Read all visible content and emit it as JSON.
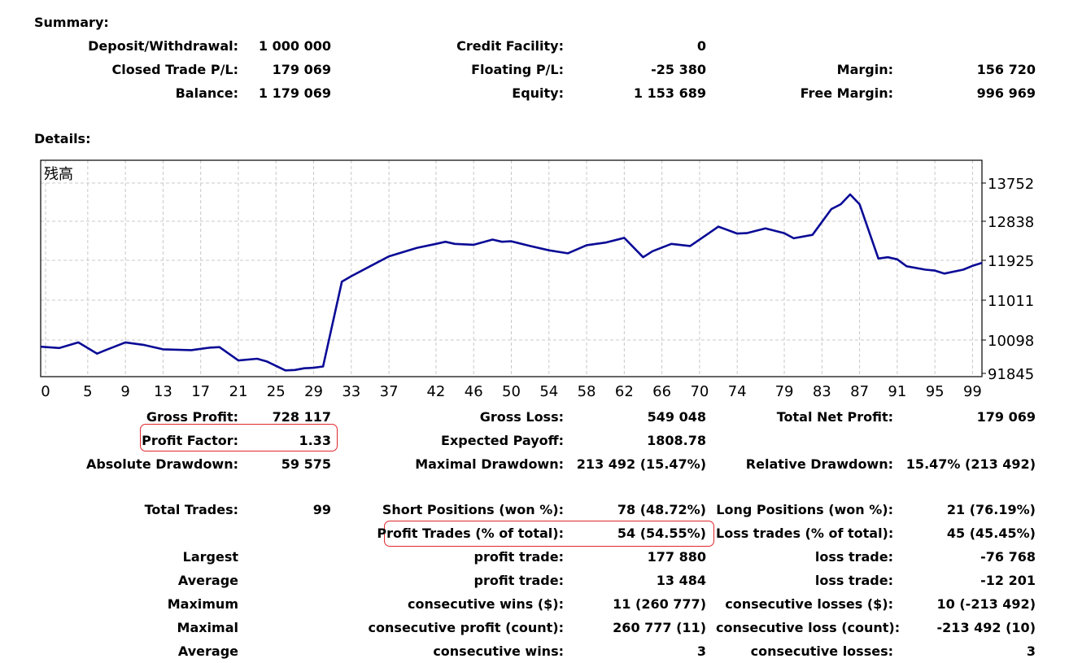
{
  "summary": {
    "heading": "Summary:",
    "deposit_label": "Deposit/Withdrawal:",
    "deposit_value": "1 000 000",
    "credit_label": "Credit Facility:",
    "credit_value": "0",
    "closed_pl_label": "Closed Trade P/L:",
    "closed_pl_value": "179 069",
    "floating_pl_label": "Floating P/L:",
    "floating_pl_value": "-25 380",
    "margin_label": "Margin:",
    "margin_value": "156 720",
    "balance_label": "Balance:",
    "balance_value": "1 179 069",
    "equity_label": "Equity:",
    "equity_value": "1 153 689",
    "free_margin_label": "Free Margin:",
    "free_margin_value": "996 969"
  },
  "details": {
    "heading": "Details:",
    "gross_profit_label": "Gross Profit:",
    "gross_profit_value": "728 117",
    "gross_loss_label": "Gross Loss:",
    "gross_loss_value": "549 048",
    "total_net_profit_label": "Total Net Profit:",
    "total_net_profit_value": "179 069",
    "profit_factor_label": "Profit Factor:",
    "profit_factor_value": "1.33",
    "expected_payoff_label": "Expected Payoff:",
    "expected_payoff_value": "1808.78",
    "absolute_drawdown_label": "Absolute Drawdown:",
    "absolute_drawdown_value": "59 575",
    "maximal_drawdown_label": "Maximal Drawdown:",
    "maximal_drawdown_value": "213 492 (15.47%)",
    "relative_drawdown_label": "Relative Drawdown:",
    "relative_drawdown_value": "15.47% (213 492)",
    "total_trades_label": "Total Trades:",
    "total_trades_value": "99",
    "short_positions_label": "Short Positions (won %):",
    "short_positions_value": "78 (48.72%)",
    "long_positions_label": "Long Positions (won %):",
    "long_positions_value": "21 (76.19%)",
    "profit_trades_label": "Profit Trades (% of total):",
    "profit_trades_value": "54 (54.55%)",
    "loss_trades_label": "Loss trades (% of total):",
    "loss_trades_value": "45 (45.45%)",
    "largest_label": "Largest",
    "largest_profit_label": "profit trade:",
    "largest_profit_value": "177 880",
    "largest_loss_label": "loss trade:",
    "largest_loss_value": "-76 768",
    "average_label": "Average",
    "average_profit_label": "profit trade:",
    "average_profit_value": "13 484",
    "average_loss_label": "loss trade:",
    "average_loss_value": "-12 201",
    "maximum_label": "Maximum",
    "max_consec_wins_label": "consecutive wins ($):",
    "max_consec_wins_value": "11 (260 777)",
    "max_consec_losses_label": "consecutive losses ($):",
    "max_consec_losses_value": "10 (-213 492)",
    "maximal_label": "Maximal",
    "maximal_consec_profit_label": "consecutive profit (count):",
    "maximal_consec_profit_value": "260 777 (11)",
    "maximal_consec_loss_label": "consecutive loss (count):",
    "maximal_consec_loss_value": "-213 492 (10)",
    "average2_label": "Average",
    "avg_consec_wins_label": "consecutive wins:",
    "avg_consec_wins_value": "3",
    "avg_consec_losses_label": "consecutive losses:",
    "avg_consec_losses_value": "3"
  },
  "colors": {
    "line": "#0a0a96",
    "grid": "#c8c8c8",
    "highlight": "#e0262b"
  },
  "chart_data": {
    "type": "line",
    "series_label": "残高",
    "x_ticks": [
      "0",
      "5",
      "9",
      "13",
      "17",
      "21",
      "25",
      "29",
      "33",
      "37",
      "42",
      "46",
      "50",
      "54",
      "58",
      "62",
      "66",
      "70",
      "74",
      "79",
      "83",
      "87",
      "91",
      "95",
      "99"
    ],
    "y_ticks": [
      "91845",
      "10098",
      "11011",
      "11925",
      "12838",
      "13752"
    ],
    "grid": true,
    "xlim": [
      0,
      100
    ],
    "x": [
      0,
      2,
      4,
      6,
      7,
      9,
      11,
      13,
      16,
      18,
      19,
      21,
      23,
      24,
      26,
      27,
      28,
      29,
      30,
      32,
      33,
      35,
      37,
      40,
      42,
      43,
      44,
      46,
      48,
      49,
      50,
      52,
      54,
      56,
      58,
      60,
      62,
      64,
      65,
      67,
      69,
      71,
      72,
      74,
      75,
      77,
      79,
      80,
      82,
      84,
      85,
      86,
      87,
      89,
      90,
      91,
      92,
      94,
      95,
      96,
      98,
      99,
      100
    ],
    "y": [
      9.92,
      9.89,
      10.02,
      9.76,
      9.85,
      10.02,
      9.96,
      9.86,
      9.84,
      9.9,
      9.91,
      9.6,
      9.64,
      9.58,
      9.37,
      9.38,
      9.42,
      9.43,
      9.46,
      11.43,
      11.56,
      11.79,
      12.02,
      12.22,
      12.31,
      12.36,
      12.31,
      12.29,
      12.41,
      12.36,
      12.37,
      12.26,
      12.16,
      12.09,
      12.28,
      12.34,
      12.45,
      12.0,
      12.14,
      12.31,
      12.26,
      12.56,
      12.71,
      12.55,
      12.56,
      12.67,
      12.56,
      12.44,
      12.52,
      13.12,
      13.23,
      13.46,
      13.23,
      11.97,
      12.0,
      11.95,
      11.79,
      11.71,
      11.69,
      11.62,
      11.71,
      11.8,
      11.87
    ]
  }
}
